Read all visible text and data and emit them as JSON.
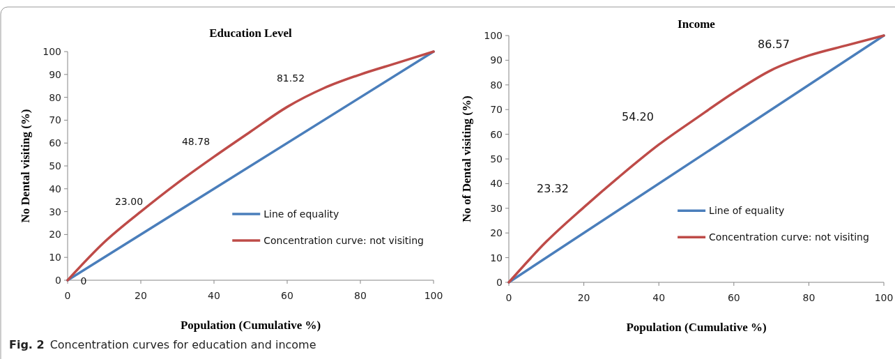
{
  "chart_data": [
    {
      "type": "line",
      "title": "Education Level",
      "xlabel": "Population (Cumulative %)",
      "ylabel": "No Dental visiting (%)",
      "xlim": [
        0,
        100
      ],
      "ylim": [
        0,
        100
      ],
      "xticks": [
        0,
        20,
        40,
        60,
        80,
        100
      ],
      "yticks": [
        0,
        10,
        20,
        30,
        40,
        50,
        60,
        70,
        80,
        90,
        100
      ],
      "grid": false,
      "legend": "right",
      "series": [
        {
          "name": "Line of equality",
          "color": "#4a7ebb",
          "x": [
            0,
            100
          ],
          "values": [
            0,
            100
          ]
        },
        {
          "name": "Concentration curve: not visiting",
          "color": "#be4b48",
          "x": [
            0,
            10,
            20,
            30,
            40,
            50,
            60,
            70,
            80,
            90,
            100
          ],
          "values": [
            0,
            16.6,
            30,
            42.5,
            54,
            65,
            75.8,
            84,
            90,
            95,
            100
          ]
        }
      ],
      "annotations": [
        "0",
        "23.00",
        "48.78",
        "81.52",
        "Fig. 2",
        "Concentration curves for education and income"
      ]
    },
    {
      "type": "line",
      "title": "Income",
      "xlabel": "Population (Cumulative %)",
      "ylabel": "No of Dental visiting (%)",
      "xlim": [
        0,
        100
      ],
      "ylim": [
        0,
        100
      ],
      "xticks": [
        0,
        20,
        40,
        60,
        80,
        100
      ],
      "yticks": [
        0,
        10,
        20,
        30,
        40,
        50,
        60,
        70,
        80,
        90,
        100
      ],
      "grid": false,
      "legend": "right",
      "series": [
        {
          "name": "Line of equality",
          "color": "#4a7ebb",
          "x": [
            0,
            100
          ],
          "values": [
            0,
            100
          ]
        },
        {
          "name": "Concentration curve: not visiting",
          "color": "#be4b48",
          "x": [
            0,
            10,
            20,
            30,
            40,
            50,
            60,
            70,
            80,
            90,
            100
          ],
          "values": [
            0,
            16.5,
            30.4,
            43.5,
            55.8,
            66.5,
            76.9,
            86,
            91.9,
            96,
            100
          ]
        }
      ],
      "annotations": [
        "23.32",
        "54.20",
        "86.57"
      ]
    }
  ]
}
